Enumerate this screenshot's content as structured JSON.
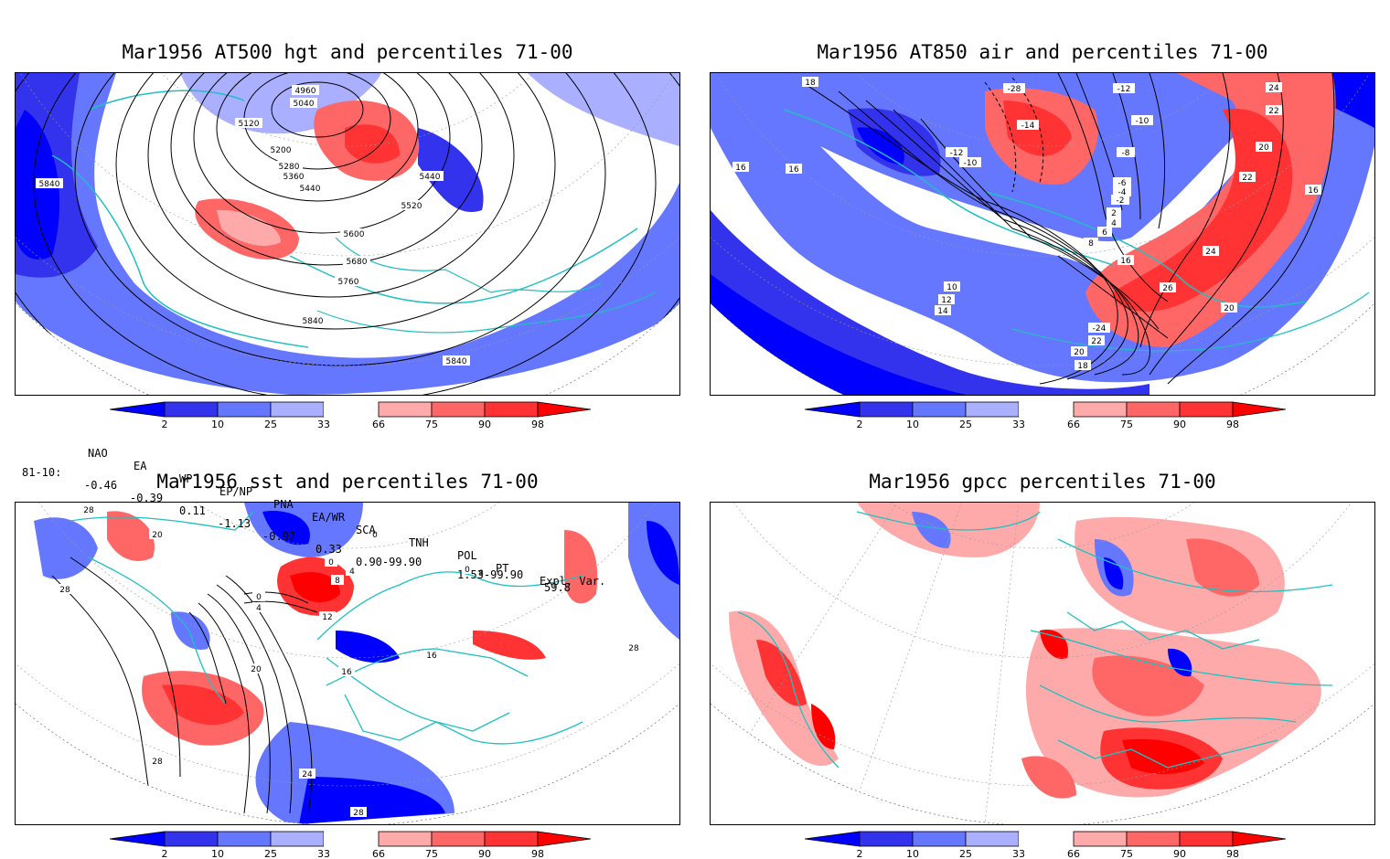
{
  "panels": [
    {
      "id": "at500",
      "title": "Mar1956 AT500 hgt and percentiles 71-00",
      "contour_labels": [
        "4960",
        "5040",
        "5120",
        "5200",
        "5280",
        "5360",
        "5440",
        "5440",
        "5520",
        "5600",
        "5680",
        "5760",
        "5840",
        "5840",
        "5840"
      ]
    },
    {
      "id": "at850",
      "title": "Mar1956 AT850 air and percentiles 71-00",
      "contour_labels": [
        "18",
        "-28",
        "-12",
        "-14",
        "-10",
        "-12",
        "-10",
        "-8",
        "-6",
        "-4",
        "-2",
        "2",
        "4",
        "6",
        "8",
        "16",
        "16",
        "16",
        "16",
        "24",
        "22",
        "20",
        "22",
        "24",
        "26",
        "10",
        "12",
        "14",
        "20",
        "-24",
        "22",
        "20",
        "18"
      ]
    },
    {
      "id": "sst",
      "title": "Mar1956 sst and percentiles 71-00",
      "contour_labels": [
        "28",
        "20",
        "28",
        "0",
        "4",
        "8",
        "12",
        "4",
        "0",
        "0",
        "16",
        "16",
        "20",
        "28",
        "24",
        "28",
        "28",
        "0",
        "8"
      ]
    },
    {
      "id": "gpcc",
      "title": "Mar1956 gpcc percentiles 71-00",
      "contour_labels": []
    }
  ],
  "colorbar": {
    "ticks": [
      "2",
      "10",
      "25",
      "33",
      "66",
      "75",
      "90",
      "98"
    ],
    "colors": [
      "#0000ff",
      "#3333ee",
      "#6677ff",
      "#aab0ff",
      "#ffffff",
      "#ffaaaa",
      "#ff6666",
      "#ff3333",
      "#ff0000"
    ]
  },
  "indices": {
    "header_names": [
      "NAO",
      "EA",
      "WP",
      "EP/NP",
      "PNA",
      "EA/WR",
      "SCA",
      "TNH",
      "POL",
      "PT",
      "Expl. Var."
    ],
    "row_label": "81-10:",
    "values": [
      "-0.46",
      "-0.39",
      "0.11",
      "-1.13",
      "-0.97",
      "0.33",
      "0.90-99.90",
      "1.53-99.90",
      "59.8"
    ]
  },
  "colors": {
    "land_outline": "#20c0c0",
    "contour": "#000000",
    "frame": "#000000"
  }
}
